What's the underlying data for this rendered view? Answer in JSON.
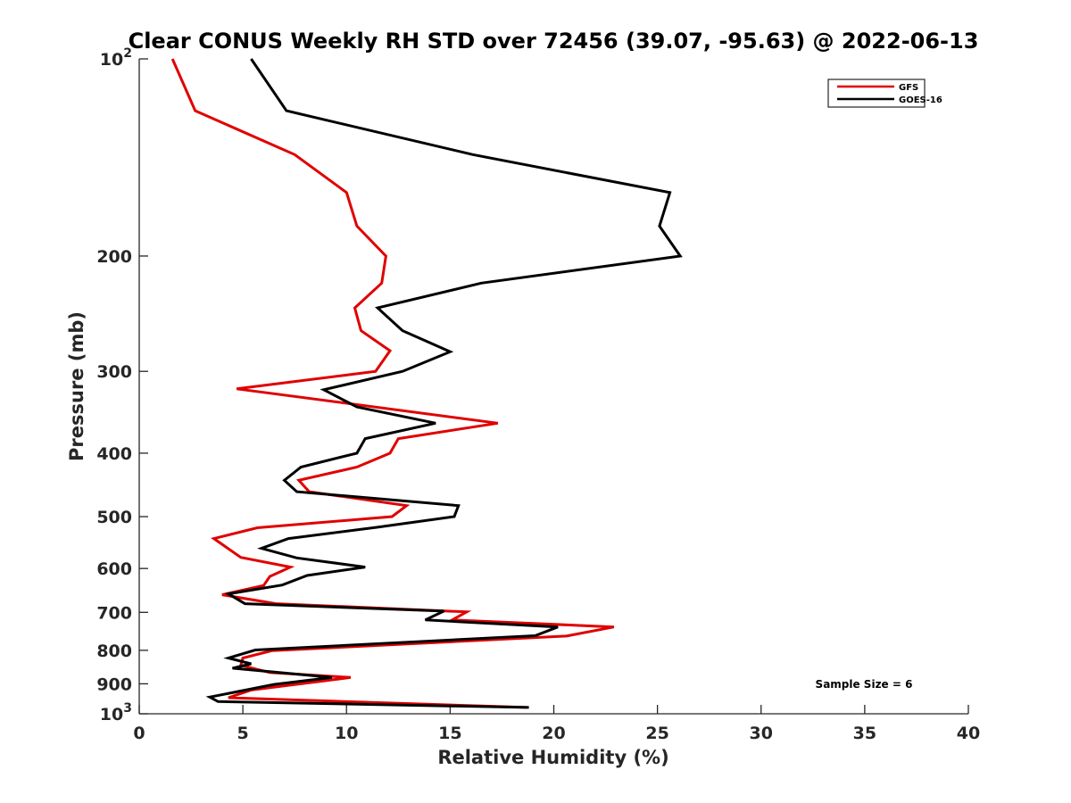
{
  "chart_data": {
    "type": "line",
    "title": "Clear CONUS Weekly RH STD over 72456 (39.07, -95.63) @ 2022-06-13",
    "xlabel": "Relative Humidity (%)",
    "ylabel": "Pressure (mb)",
    "xlim": [
      0,
      40
    ],
    "ylim": [
      100,
      1000
    ],
    "yscale": "log",
    "y_reversed": true,
    "grid": false,
    "legend_position": "top-right",
    "x_ticks": [
      {
        "value": 0,
        "label": "0"
      },
      {
        "value": 5,
        "label": "5"
      },
      {
        "value": 10,
        "label": "10"
      },
      {
        "value": 15,
        "label": "15"
      },
      {
        "value": 20,
        "label": "20"
      },
      {
        "value": 25,
        "label": "25"
      },
      {
        "value": 30,
        "label": "30"
      },
      {
        "value": 35,
        "label": "35"
      },
      {
        "value": 40,
        "label": "40"
      }
    ],
    "y_ticks": [
      {
        "value": 100,
        "label": "10",
        "sup": "2"
      },
      {
        "value": 200,
        "label": "200",
        "sup": ""
      },
      {
        "value": 300,
        "label": "300",
        "sup": ""
      },
      {
        "value": 400,
        "label": "400",
        "sup": ""
      },
      {
        "value": 500,
        "label": "500",
        "sup": ""
      },
      {
        "value": 600,
        "label": "600",
        "sup": ""
      },
      {
        "value": 700,
        "label": "700",
        "sup": ""
      },
      {
        "value": 800,
        "label": "800",
        "sup": ""
      },
      {
        "value": 900,
        "label": "900",
        "sup": ""
      },
      {
        "value": 1000,
        "label": "10",
        "sup": "3"
      }
    ],
    "annotation": "Sample Size = 6",
    "series": [
      {
        "name": "GFS",
        "color": "#e00000",
        "points": [
          [
            1.6,
            100
          ],
          [
            2.7,
            120
          ],
          [
            7.5,
            140
          ],
          [
            10.0,
            160
          ],
          [
            10.5,
            180
          ],
          [
            11.9,
            200
          ],
          [
            11.7,
            220
          ],
          [
            10.4,
            240
          ],
          [
            10.7,
            260
          ],
          [
            12.1,
            279
          ],
          [
            11.4,
            300
          ],
          [
            4.7,
            319
          ],
          [
            17.3,
            360
          ],
          [
            12.5,
            380
          ],
          [
            12.1,
            400
          ],
          [
            10.5,
            420
          ],
          [
            7.7,
            440
          ],
          [
            8.2,
            458
          ],
          [
            12.9,
            481
          ],
          [
            12.2,
            500
          ],
          [
            5.7,
            520
          ],
          [
            3.6,
            540
          ],
          [
            4.9,
            577
          ],
          [
            7.3,
            597
          ],
          [
            6.3,
            617
          ],
          [
            6.0,
            637
          ],
          [
            4.0,
            658
          ],
          [
            6.6,
            679
          ],
          [
            15.8,
            699
          ],
          [
            15.1,
            719
          ],
          [
            22.9,
            737
          ],
          [
            20.6,
            761
          ],
          [
            6.4,
            801
          ],
          [
            5.0,
            822
          ],
          [
            4.9,
            843
          ],
          [
            6.3,
            865
          ],
          [
            10.2,
            880
          ],
          [
            5.4,
            920
          ],
          [
            4.3,
            945
          ],
          [
            18.7,
            978
          ]
        ]
      },
      {
        "name": "GOES-16",
        "color": "#000000",
        "points": [
          [
            5.4,
            100
          ],
          [
            7.1,
            120
          ],
          [
            16.1,
            140
          ],
          [
            25.6,
            160
          ],
          [
            25.1,
            180
          ],
          [
            26.1,
            200
          ],
          [
            16.5,
            220
          ],
          [
            11.5,
            240
          ],
          [
            12.7,
            260
          ],
          [
            15.0,
            280
          ],
          [
            12.7,
            300
          ],
          [
            8.9,
            320
          ],
          [
            10.5,
            340
          ],
          [
            14.3,
            360
          ],
          [
            10.9,
            380
          ],
          [
            10.5,
            400
          ],
          [
            7.8,
            420
          ],
          [
            7.0,
            440
          ],
          [
            7.6,
            458
          ],
          [
            15.4,
            481
          ],
          [
            15.2,
            500
          ],
          [
            11.5,
            519
          ],
          [
            7.2,
            540
          ],
          [
            5.9,
            559
          ],
          [
            7.6,
            578
          ],
          [
            10.9,
            597
          ],
          [
            8.1,
            615
          ],
          [
            6.9,
            636
          ],
          [
            4.3,
            656
          ],
          [
            5.1,
            679
          ],
          [
            14.7,
            697
          ],
          [
            13.8,
            719
          ],
          [
            20.2,
            737
          ],
          [
            19.1,
            760
          ],
          [
            5.6,
            799
          ],
          [
            4.3,
            822
          ],
          [
            5.4,
            839
          ],
          [
            4.5,
            852
          ],
          [
            9.3,
            880
          ],
          [
            6.5,
            902
          ],
          [
            3.4,
            943
          ],
          [
            3.8,
            958
          ],
          [
            18.8,
            978
          ]
        ]
      }
    ]
  }
}
